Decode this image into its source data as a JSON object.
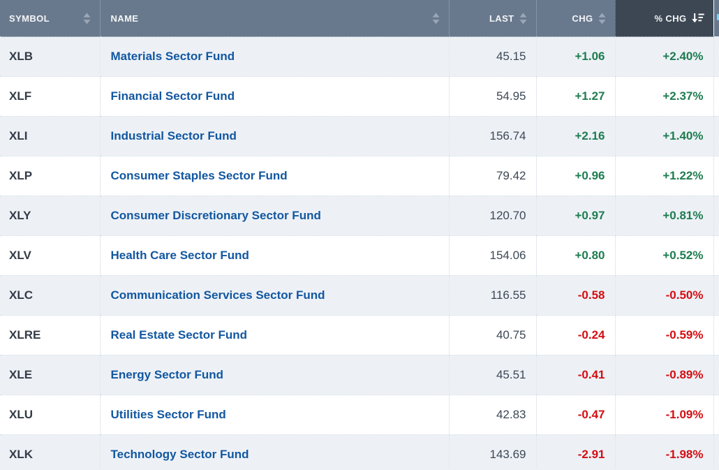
{
  "colors": {
    "header-bg": "#69798d",
    "header-active-bg": "#3d4754",
    "header-text": "#f3f5f7",
    "sort-icon": "#9aa7b6",
    "row-alt": "#edf1f6",
    "grid": "#c9d5df",
    "symbol": "#333b46",
    "link": "#1257a0",
    "last": "#3c4855",
    "positive": "#1e7c50",
    "negative": "#d40d12",
    "clipped-icon": "#7fd4f2"
  },
  "table": {
    "columns": [
      {
        "key": "symbol",
        "label": "SYMBOL",
        "sort_icon": "sort-both-icon",
        "align": "split",
        "active": false
      },
      {
        "key": "name",
        "label": "NAME",
        "sort_icon": "sort-both-icon",
        "align": "split2",
        "active": false
      },
      {
        "key": "last",
        "label": "LAST",
        "sort_icon": "sort-both-icon",
        "align": "right",
        "active": false
      },
      {
        "key": "chg",
        "label": "CHG",
        "sort_icon": "sort-both-icon",
        "align": "right",
        "active": false
      },
      {
        "key": "pct_chg",
        "label": "% CHG",
        "sort_icon": "sort-desc-icon",
        "align": "right",
        "active": true
      }
    ],
    "sort": {
      "column": "% CHG",
      "direction": "descending"
    },
    "rows": [
      {
        "symbol": "XLB",
        "name": "Materials Sector Fund",
        "last": "45.15",
        "chg": "+1.06",
        "pct_chg": "+2.40%"
      },
      {
        "symbol": "XLF",
        "name": "Financial Sector Fund",
        "last": "54.95",
        "chg": "+1.27",
        "pct_chg": "+2.37%"
      },
      {
        "symbol": "XLI",
        "name": "Industrial Sector Fund",
        "last": "156.74",
        "chg": "+2.16",
        "pct_chg": "+1.40%"
      },
      {
        "symbol": "XLP",
        "name": "Consumer Staples Sector Fund",
        "last": "79.42",
        "chg": "+0.96",
        "pct_chg": "+1.22%"
      },
      {
        "symbol": "XLY",
        "name": "Consumer Discretionary Sector Fund",
        "last": "120.70",
        "chg": "+0.97",
        "pct_chg": "+0.81%"
      },
      {
        "symbol": "XLV",
        "name": "Health Care Sector Fund",
        "last": "154.06",
        "chg": "+0.80",
        "pct_chg": "+0.52%"
      },
      {
        "symbol": "XLC",
        "name": "Communication Services Sector Fund",
        "last": "116.55",
        "chg": "-0.58",
        "pct_chg": "-0.50%"
      },
      {
        "symbol": "XLRE",
        "name": "Real Estate Sector Fund",
        "last": "40.75",
        "chg": "-0.24",
        "pct_chg": "-0.59%"
      },
      {
        "symbol": "XLE",
        "name": "Energy Sector Fund",
        "last": "45.51",
        "chg": "-0.41",
        "pct_chg": "-0.89%"
      },
      {
        "symbol": "XLU",
        "name": "Utilities Sector Fund",
        "last": "42.83",
        "chg": "-0.47",
        "pct_chg": "-1.09%"
      },
      {
        "symbol": "XLK",
        "name": "Technology Sector Fund",
        "last": "143.69",
        "chg": "-2.91",
        "pct_chg": "-1.98%"
      }
    ]
  }
}
